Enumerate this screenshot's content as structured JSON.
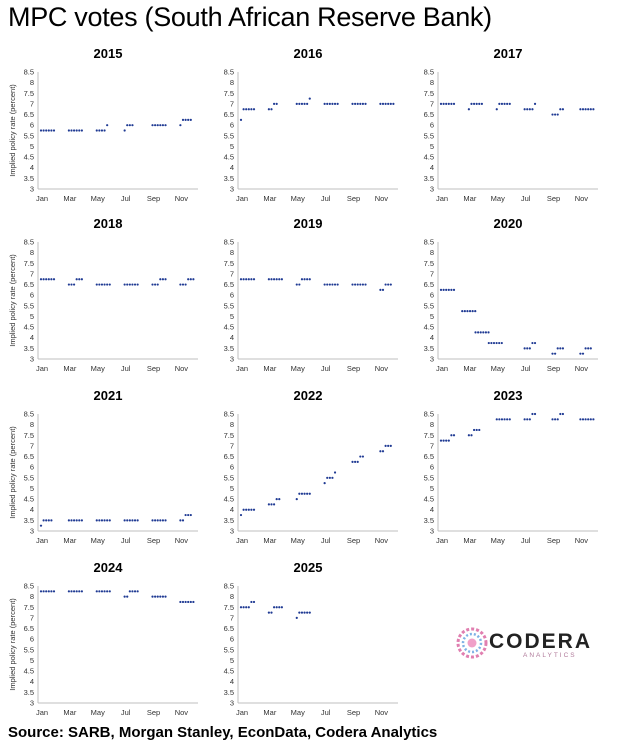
{
  "title": "MPC votes (South African Reserve Bank)",
  "source": "Source: SARB, Morgan Stanley, EconData, Codera Analytics",
  "logo": {
    "name": "CODERA",
    "tagline": "ANALYTICS"
  },
  "colors": {
    "dots": "#1f3a93",
    "axis": "#bfbfbf"
  },
  "chart_data": [
    {
      "type": "scatter",
      "title": "2015",
      "ylabel": "Implied policy rate (percent)",
      "xticks": [
        "Jan",
        "Mar",
        "May",
        "Jul",
        "Sep",
        "Nov"
      ],
      "yticks": [
        "3",
        "3.5",
        "4",
        "4.5",
        "5",
        "5.5",
        "6",
        "6.5",
        "7",
        "7.5",
        "8",
        "8.5"
      ],
      "ylim": [
        3,
        8.5
      ],
      "meetings": [
        {
          "x": 0.0,
          "votes": [
            5.75,
            5.75,
            5.75,
            5.75,
            5.75,
            5.75
          ]
        },
        {
          "x": 2.1,
          "votes": [
            5.75,
            5.75,
            5.75,
            5.75,
            5.75,
            5.75
          ]
        },
        {
          "x": 4.2,
          "votes": [
            5.75,
            5.75,
            5.75,
            5.75,
            6.0
          ]
        },
        {
          "x": 6.3,
          "votes": [
            5.75,
            6.0,
            6.0,
            6.0
          ]
        },
        {
          "x": 8.4,
          "votes": [
            6.0,
            6.0,
            6.0,
            6.0,
            6.0,
            6.0
          ]
        },
        {
          "x": 10.5,
          "votes": [
            6.0,
            6.25,
            6.25,
            6.25,
            6.25
          ]
        }
      ]
    },
    {
      "type": "scatter",
      "title": "2016",
      "ylabel": "",
      "xticks": [
        "Jan",
        "Mar",
        "May",
        "Jul",
        "Sep",
        "Nov"
      ],
      "yticks": [
        "3",
        "3.5",
        "4",
        "4.5",
        "5",
        "5.5",
        "6",
        "6.5",
        "7",
        "7.5",
        "8",
        "8.5"
      ],
      "ylim": [
        3,
        8.5
      ],
      "meetings": [
        {
          "x": 0.0,
          "votes": [
            6.25,
            6.75,
            6.75,
            6.75,
            6.75,
            6.75
          ]
        },
        {
          "x": 2.1,
          "votes": [
            6.75,
            6.75,
            7.0,
            7.0
          ]
        },
        {
          "x": 4.2,
          "votes": [
            7.0,
            7.0,
            7.0,
            7.0,
            7.0,
            7.25
          ]
        },
        {
          "x": 6.3,
          "votes": [
            7.0,
            7.0,
            7.0,
            7.0,
            7.0,
            7.0
          ]
        },
        {
          "x": 8.4,
          "votes": [
            7.0,
            7.0,
            7.0,
            7.0,
            7.0,
            7.0
          ]
        },
        {
          "x": 10.5,
          "votes": [
            7.0,
            7.0,
            7.0,
            7.0,
            7.0,
            7.0
          ]
        }
      ]
    },
    {
      "type": "scatter",
      "title": "2017",
      "ylabel": "",
      "xticks": [
        "Jan",
        "Mar",
        "May",
        "Jul",
        "Sep",
        "Nov"
      ],
      "yticks": [
        "3",
        "3.5",
        "4",
        "4.5",
        "5",
        "5.5",
        "6",
        "6.5",
        "7",
        "7.5",
        "8",
        "8.5"
      ],
      "ylim": [
        3,
        8.5
      ],
      "meetings": [
        {
          "x": 0.0,
          "votes": [
            7.0,
            7.0,
            7.0,
            7.0,
            7.0,
            7.0
          ]
        },
        {
          "x": 2.1,
          "votes": [
            6.75,
            7.0,
            7.0,
            7.0,
            7.0,
            7.0
          ]
        },
        {
          "x": 4.2,
          "votes": [
            6.75,
            7.0,
            7.0,
            7.0,
            7.0,
            7.0
          ]
        },
        {
          "x": 6.3,
          "votes": [
            6.75,
            6.75,
            6.75,
            6.75,
            7.0
          ]
        },
        {
          "x": 8.4,
          "votes": [
            6.5,
            6.5,
            6.5,
            6.75,
            6.75
          ]
        },
        {
          "x": 10.5,
          "votes": [
            6.75,
            6.75,
            6.75,
            6.75,
            6.75,
            6.75
          ]
        }
      ]
    },
    {
      "type": "scatter",
      "title": "2018",
      "ylabel": "Implied policy rate (percent)",
      "xticks": [
        "Jan",
        "Mar",
        "May",
        "Jul",
        "Sep",
        "Nov"
      ],
      "yticks": [
        "3",
        "3.5",
        "4",
        "4.5",
        "5",
        "5.5",
        "6",
        "6.5",
        "7",
        "7.5",
        "8",
        "8.5"
      ],
      "ylim": [
        3,
        8.5
      ],
      "meetings": [
        {
          "x": 0.0,
          "votes": [
            6.75,
            6.75,
            6.75,
            6.75,
            6.75,
            6.75
          ]
        },
        {
          "x": 2.1,
          "votes": [
            6.5,
            6.5,
            6.5,
            6.75,
            6.75,
            6.75
          ]
        },
        {
          "x": 4.2,
          "votes": [
            6.5,
            6.5,
            6.5,
            6.5,
            6.5,
            6.5
          ]
        },
        {
          "x": 6.3,
          "votes": [
            6.5,
            6.5,
            6.5,
            6.5,
            6.5,
            6.5
          ]
        },
        {
          "x": 8.4,
          "votes": [
            6.5,
            6.5,
            6.5,
            6.75,
            6.75,
            6.75
          ]
        },
        {
          "x": 10.5,
          "votes": [
            6.5,
            6.5,
            6.5,
            6.75,
            6.75,
            6.75
          ]
        }
      ]
    },
    {
      "type": "scatter",
      "title": "2019",
      "ylabel": "",
      "xticks": [
        "Jan",
        "Mar",
        "May",
        "Jul",
        "Sep",
        "Nov"
      ],
      "yticks": [
        "3",
        "3.5",
        "4",
        "4.5",
        "5",
        "5.5",
        "6",
        "6.5",
        "7",
        "7.5",
        "8",
        "8.5"
      ],
      "ylim": [
        3,
        8.5
      ],
      "meetings": [
        {
          "x": 0.0,
          "votes": [
            6.75,
            6.75,
            6.75,
            6.75,
            6.75,
            6.75
          ]
        },
        {
          "x": 2.1,
          "votes": [
            6.75,
            6.75,
            6.75,
            6.75,
            6.75,
            6.75
          ]
        },
        {
          "x": 4.2,
          "votes": [
            6.5,
            6.5,
            6.75,
            6.75,
            6.75,
            6.75
          ]
        },
        {
          "x": 6.3,
          "votes": [
            6.5,
            6.5,
            6.5,
            6.5,
            6.5,
            6.5
          ]
        },
        {
          "x": 8.4,
          "votes": [
            6.5,
            6.5,
            6.5,
            6.5,
            6.5,
            6.5
          ]
        },
        {
          "x": 10.5,
          "votes": [
            6.25,
            6.25,
            6.5,
            6.5,
            6.5
          ]
        }
      ]
    },
    {
      "type": "scatter",
      "title": "2020",
      "ylabel": "",
      "xticks": [
        "Jan",
        "Mar",
        "May",
        "Jul",
        "Sep",
        "Nov"
      ],
      "yticks": [
        "3",
        "3.5",
        "4",
        "4.5",
        "5",
        "5.5",
        "6",
        "6.5",
        "7",
        "7.5",
        "8",
        "8.5"
      ],
      "ylim": [
        3,
        8.5
      ],
      "meetings": [
        {
          "x": 0.0,
          "votes": [
            6.25,
            6.25,
            6.25,
            6.25,
            6.25,
            6.25
          ]
        },
        {
          "x": 1.6,
          "votes": [
            5.25,
            5.25,
            5.25,
            5.25,
            5.25,
            5.25
          ]
        },
        {
          "x": 2.6,
          "votes": [
            4.25,
            4.25,
            4.25,
            4.25,
            4.25,
            4.25
          ]
        },
        {
          "x": 3.6,
          "votes": [
            3.75,
            3.75,
            3.75,
            3.75,
            3.75,
            3.75
          ]
        },
        {
          "x": 6.3,
          "votes": [
            3.5,
            3.5,
            3.5,
            3.75,
            3.75
          ]
        },
        {
          "x": 8.4,
          "votes": [
            3.25,
            3.25,
            3.5,
            3.5,
            3.5
          ]
        },
        {
          "x": 10.5,
          "votes": [
            3.25,
            3.25,
            3.5,
            3.5,
            3.5
          ]
        }
      ]
    },
    {
      "type": "scatter",
      "title": "2021",
      "ylabel": "Implied policy rate (percent)",
      "xticks": [
        "Jan",
        "Mar",
        "May",
        "Jul",
        "Sep",
        "Nov"
      ],
      "yticks": [
        "3",
        "3.5",
        "4",
        "4.5",
        "5",
        "5.5",
        "6",
        "6.5",
        "7",
        "7.5",
        "8",
        "8.5"
      ],
      "ylim": [
        3,
        8.5
      ],
      "meetings": [
        {
          "x": 0.0,
          "votes": [
            3.25,
            3.5,
            3.5,
            3.5,
            3.5
          ]
        },
        {
          "x": 2.1,
          "votes": [
            3.5,
            3.5,
            3.5,
            3.5,
            3.5,
            3.5
          ]
        },
        {
          "x": 4.2,
          "votes": [
            3.5,
            3.5,
            3.5,
            3.5,
            3.5,
            3.5
          ]
        },
        {
          "x": 6.3,
          "votes": [
            3.5,
            3.5,
            3.5,
            3.5,
            3.5,
            3.5
          ]
        },
        {
          "x": 8.4,
          "votes": [
            3.5,
            3.5,
            3.5,
            3.5,
            3.5,
            3.5
          ]
        },
        {
          "x": 10.5,
          "votes": [
            3.5,
            3.5,
            3.75,
            3.75,
            3.75
          ]
        }
      ]
    },
    {
      "type": "scatter",
      "title": "2022",
      "ylabel": "",
      "xticks": [
        "Jan",
        "Mar",
        "May",
        "Jul",
        "Sep",
        "Nov"
      ],
      "yticks": [
        "3",
        "3.5",
        "4",
        "4.5",
        "5",
        "5.5",
        "6",
        "6.5",
        "7",
        "7.5",
        "8",
        "8.5"
      ],
      "ylim": [
        3,
        8.5
      ],
      "meetings": [
        {
          "x": 0.0,
          "votes": [
            3.75,
            4.0,
            4.0,
            4.0,
            4.0,
            4.0
          ]
        },
        {
          "x": 2.1,
          "votes": [
            4.25,
            4.25,
            4.25,
            4.5,
            4.5
          ]
        },
        {
          "x": 4.2,
          "votes": [
            4.5,
            4.75,
            4.75,
            4.75,
            4.75,
            4.75
          ]
        },
        {
          "x": 6.3,
          "votes": [
            5.25,
            5.5,
            5.5,
            5.5,
            5.75
          ]
        },
        {
          "x": 8.4,
          "votes": [
            6.25,
            6.25,
            6.25,
            6.5,
            6.5
          ]
        },
        {
          "x": 10.5,
          "votes": [
            6.75,
            6.75,
            7.0,
            7.0,
            7.0
          ]
        }
      ]
    },
    {
      "type": "scatter",
      "title": "2023",
      "ylabel": "",
      "xticks": [
        "Jan",
        "Mar",
        "May",
        "Jul",
        "Sep",
        "Nov"
      ],
      "yticks": [
        "3",
        "3.5",
        "4",
        "4.5",
        "5",
        "5.5",
        "6",
        "6.5",
        "7",
        "7.5",
        "8",
        "8.5"
      ],
      "ylim": [
        3,
        8.5
      ],
      "meetings": [
        {
          "x": 0.0,
          "votes": [
            7.25,
            7.25,
            7.25,
            7.25,
            7.5,
            7.5
          ]
        },
        {
          "x": 2.1,
          "votes": [
            7.5,
            7.5,
            7.75,
            7.75,
            7.75
          ]
        },
        {
          "x": 4.2,
          "votes": [
            8.25,
            8.25,
            8.25,
            8.25,
            8.25,
            8.25
          ]
        },
        {
          "x": 6.3,
          "votes": [
            8.25,
            8.25,
            8.25,
            8.5,
            8.5
          ]
        },
        {
          "x": 8.4,
          "votes": [
            8.25,
            8.25,
            8.25,
            8.5,
            8.5
          ]
        },
        {
          "x": 10.5,
          "votes": [
            8.25,
            8.25,
            8.25,
            8.25,
            8.25,
            8.25
          ]
        }
      ]
    },
    {
      "type": "scatter",
      "title": "2024",
      "ylabel": "Implied policy rate (percent)",
      "xticks": [
        "Jan",
        "Mar",
        "May",
        "Jul",
        "Sep",
        "Nov"
      ],
      "yticks": [
        "3",
        "3.5",
        "4",
        "4.5",
        "5",
        "5.5",
        "6",
        "6.5",
        "7",
        "7.5",
        "8",
        "8.5"
      ],
      "ylim": [
        3,
        8.5
      ],
      "meetings": [
        {
          "x": 0.0,
          "votes": [
            8.25,
            8.25,
            8.25,
            8.25,
            8.25,
            8.25
          ]
        },
        {
          "x": 2.1,
          "votes": [
            8.25,
            8.25,
            8.25,
            8.25,
            8.25,
            8.25
          ]
        },
        {
          "x": 4.2,
          "votes": [
            8.25,
            8.25,
            8.25,
            8.25,
            8.25,
            8.25
          ]
        },
        {
          "x": 6.3,
          "votes": [
            8.0,
            8.0,
            8.25,
            8.25,
            8.25,
            8.25
          ]
        },
        {
          "x": 8.4,
          "votes": [
            8.0,
            8.0,
            8.0,
            8.0,
            8.0,
            8.0
          ]
        },
        {
          "x": 10.5,
          "votes": [
            7.75,
            7.75,
            7.75,
            7.75,
            7.75,
            7.75
          ]
        }
      ]
    },
    {
      "type": "scatter",
      "title": "2025",
      "ylabel": "",
      "xticks": [
        "Jan",
        "Mar",
        "May",
        "Jul",
        "Sep",
        "Nov"
      ],
      "yticks": [
        "3",
        "3.5",
        "4",
        "4.5",
        "5",
        "5.5",
        "6",
        "6.5",
        "7",
        "7.5",
        "8",
        "8.5"
      ],
      "ylim": [
        3,
        8.5
      ],
      "meetings": [
        {
          "x": 0.0,
          "votes": [
            7.5,
            7.5,
            7.5,
            7.5,
            7.75,
            7.75
          ]
        },
        {
          "x": 2.1,
          "votes": [
            7.25,
            7.25,
            7.5,
            7.5,
            7.5,
            7.5
          ]
        },
        {
          "x": 4.2,
          "votes": [
            7.0,
            7.25,
            7.25,
            7.25,
            7.25,
            7.25
          ]
        }
      ]
    }
  ]
}
